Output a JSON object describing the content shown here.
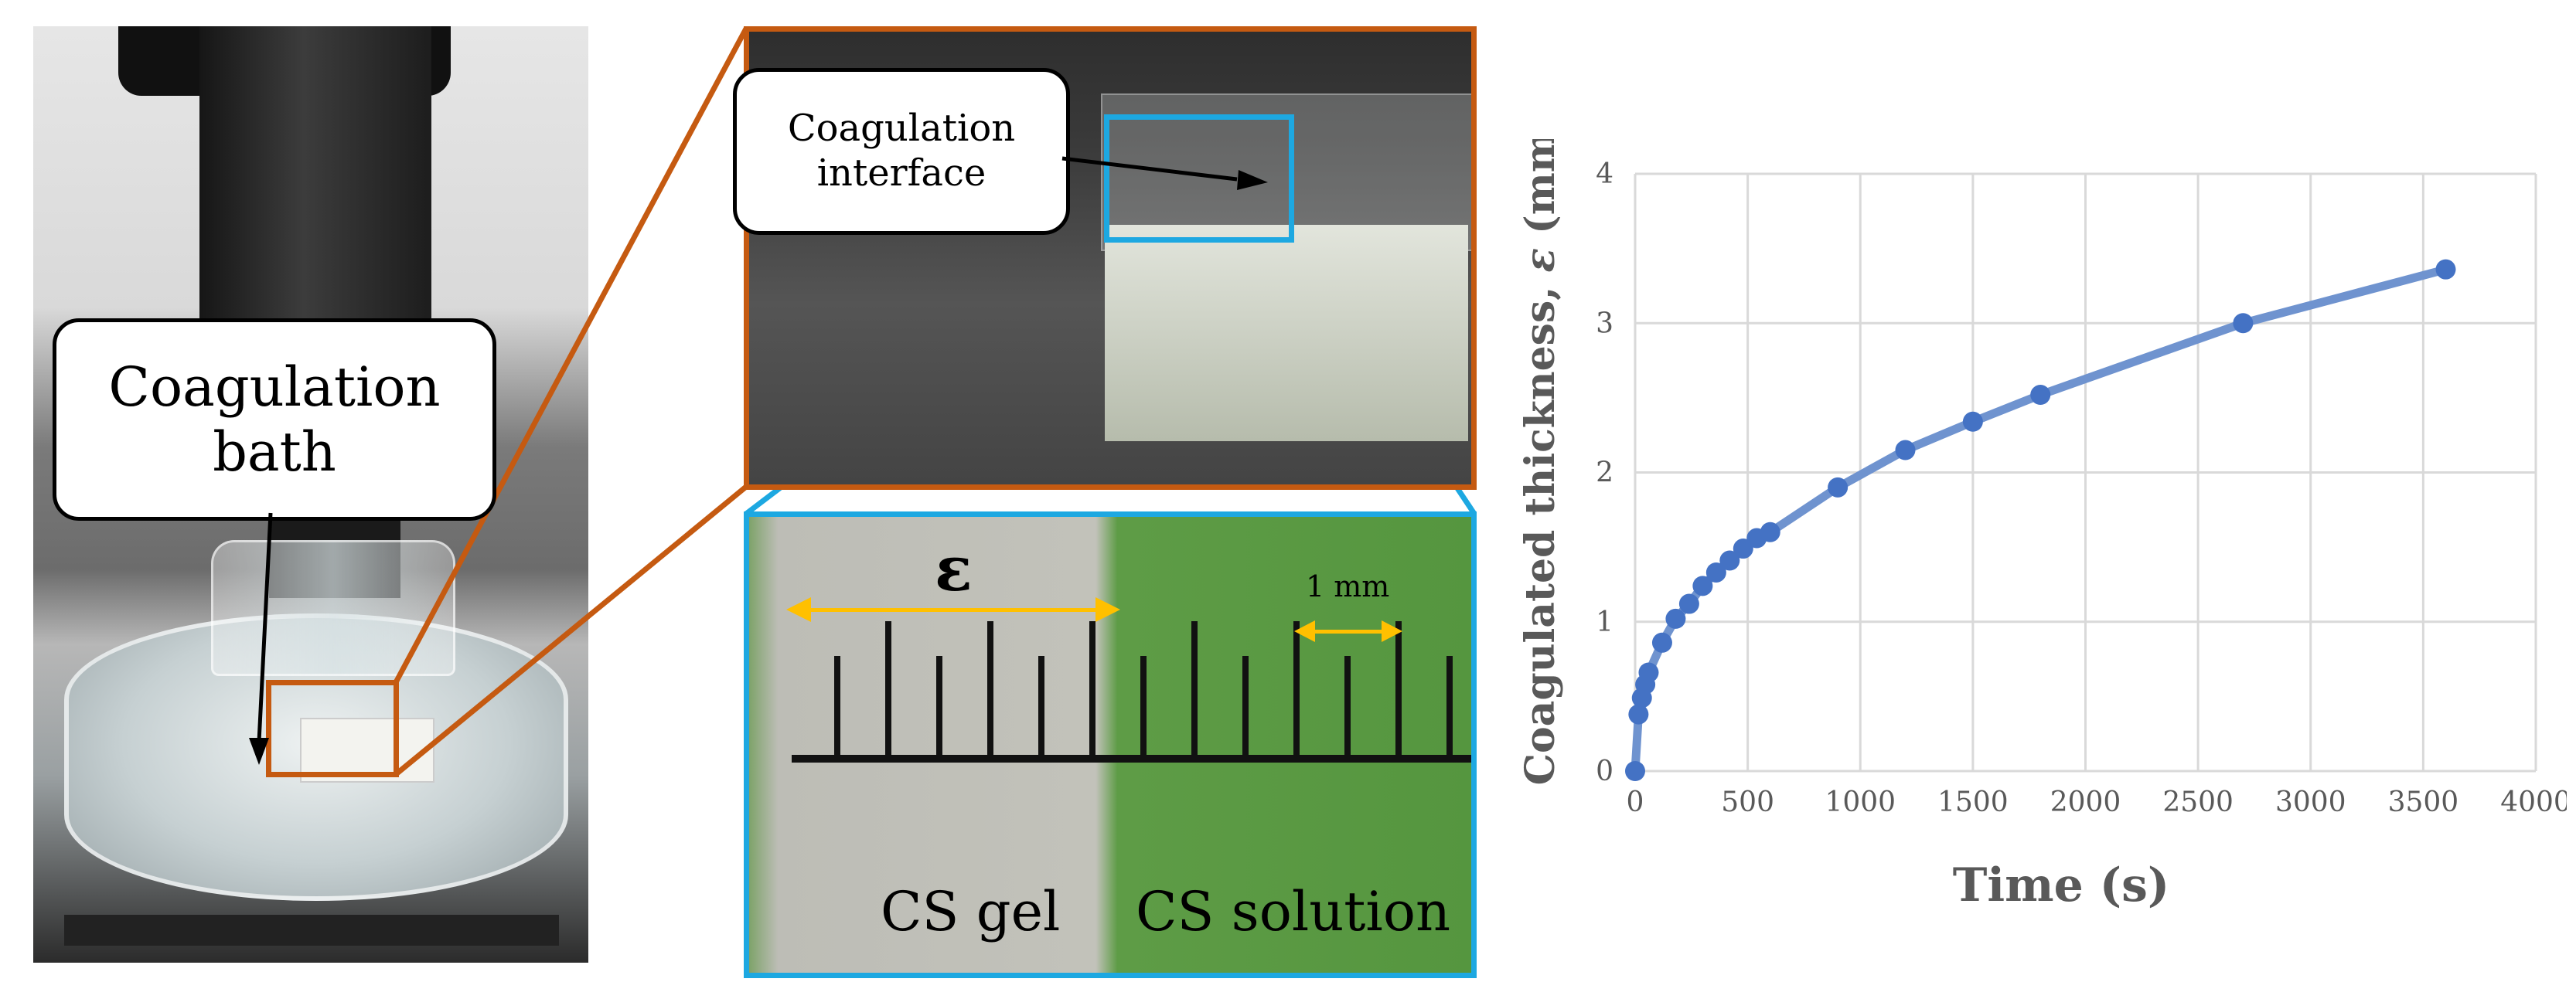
{
  "panel1": {
    "callout": "Coagulation bath"
  },
  "panel2": {
    "callout": "Coagulation interface"
  },
  "panel3": {
    "epsilon": "ε",
    "scale_label": "1 mm",
    "left_label": "CS gel",
    "right_label": "CS solution"
  },
  "colors": {
    "orange": "#c55a11",
    "blue": "#1da8e1",
    "yellow": "#ffc000",
    "series": "#4472c4"
  },
  "chart_data": {
    "type": "line",
    "xlabel": "Time (s)",
    "ylabel_prefix": "Coagulated thickness, ",
    "ylabel_symbol": "ε",
    "ylabel_suffix": " (mm)",
    "xlim": [
      0,
      4000
    ],
    "ylim": [
      0,
      4
    ],
    "xticks": [
      0,
      500,
      1000,
      1500,
      2000,
      2500,
      3000,
      3500,
      4000
    ],
    "yticks": [
      0,
      1,
      2,
      3,
      4
    ],
    "grid": true,
    "series": [
      {
        "x": [
          0,
          15,
          30,
          45,
          60,
          120,
          180,
          240,
          300,
          360,
          420,
          480,
          540,
          600,
          900,
          1200,
          1500,
          1800,
          2700,
          3600
        ],
        "y": [
          0,
          0.38,
          0.49,
          0.58,
          0.66,
          0.86,
          1.02,
          1.12,
          1.24,
          1.33,
          1.41,
          1.49,
          1.56,
          1.6,
          1.9,
          2.15,
          2.34,
          2.52,
          3.0,
          3.36
        ]
      }
    ]
  }
}
